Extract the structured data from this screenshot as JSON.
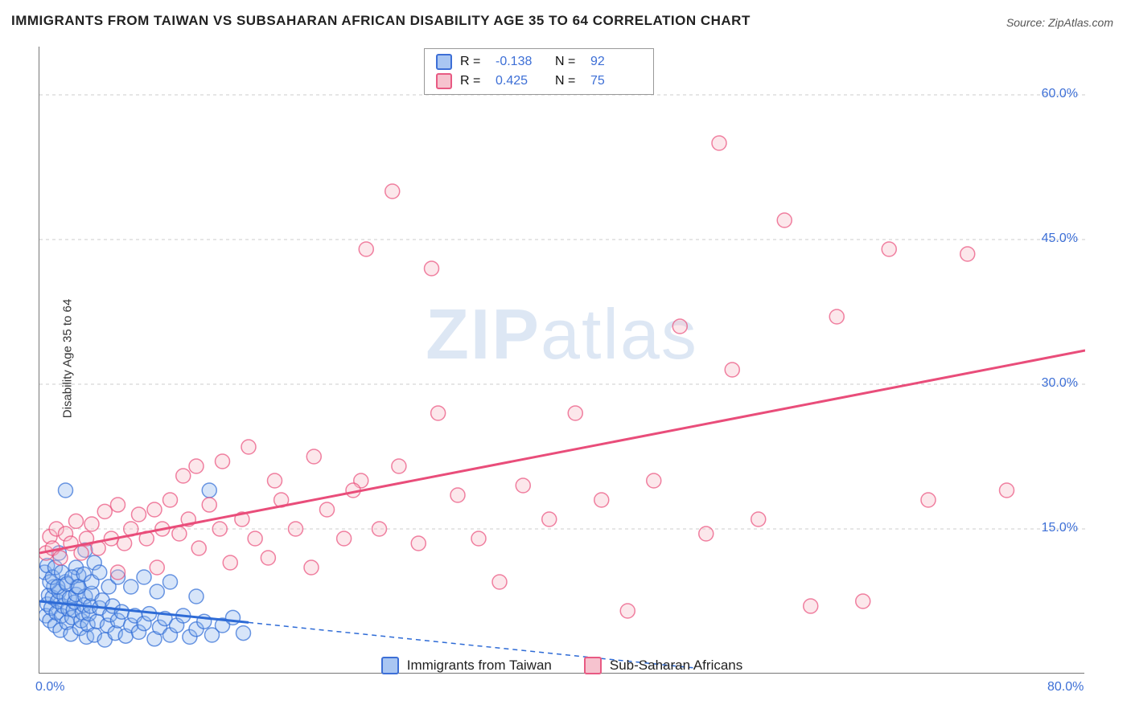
{
  "chart": {
    "type": "scatter-with-regression",
    "title": "IMMIGRANTS FROM TAIWAN VS SUBSAHARAN AFRICAN DISABILITY AGE 35 TO 64 CORRELATION CHART",
    "source_label": "Source: ZipAtlas.com",
    "watermark": {
      "prefix": "ZIP",
      "suffix": "atlas"
    },
    "ylabel": "Disability Age 35 to 64",
    "background_color": "#ffffff",
    "grid_color": "#cccccc",
    "grid_dash": "4,4",
    "axis_color": "#777777",
    "tick_font_color": "#3d6fd6",
    "tick_fontsize": 16,
    "title_fontsize": 17,
    "label_fontsize": 15,
    "watermark_fontsize": 88,
    "watermark_color": "rgba(120,160,210,0.25)",
    "xlim": [
      0.0,
      80.0
    ],
    "ylim": [
      0.0,
      65.0
    ],
    "y_ticks": [
      15.0,
      30.0,
      45.0,
      60.0
    ],
    "y_tick_labels": [
      "15.0%",
      "30.0%",
      "45.0%",
      "60.0%"
    ],
    "x_tick_left": {
      "value": 0.0,
      "label": "0.0%"
    },
    "x_tick_right": {
      "value": 80.0,
      "label": "80.0%"
    },
    "marker_radius": 9,
    "marker_fill_opacity": 0.35,
    "marker_stroke_width": 1.5,
    "regression_line_width": 3,
    "series": [
      {
        "key": "taiwan",
        "name": "Immigrants from Taiwan",
        "color_fill": "#8db4ed",
        "color_stroke": "#2e6bd6",
        "legend_swatch_bg": "#a9c6f2",
        "legend_swatch_border": "#3d6fd6",
        "stats": {
          "R": "-0.138",
          "N": "92"
        },
        "regression": {
          "x0": 0.0,
          "y0": 7.5,
          "x_solid_end": 16.0,
          "y_solid_end": 5.3,
          "x1": 50.0,
          "y1": 0.6,
          "dash_pattern": "6,5"
        },
        "points": [
          [
            0.5,
            6.0
          ],
          [
            0.6,
            7.2
          ],
          [
            0.7,
            8.1
          ],
          [
            0.8,
            5.5
          ],
          [
            0.9,
            6.8
          ],
          [
            1.0,
            7.9
          ],
          [
            1.1,
            9.0
          ],
          [
            1.2,
            5.0
          ],
          [
            1.3,
            6.3
          ],
          [
            1.4,
            7.5
          ],
          [
            1.5,
            8.5
          ],
          [
            1.6,
            4.5
          ],
          [
            1.7,
            6.0
          ],
          [
            1.8,
            7.0
          ],
          [
            1.9,
            8.0
          ],
          [
            2.0,
            9.5
          ],
          [
            2.1,
            5.3
          ],
          [
            2.2,
            6.7
          ],
          [
            2.3,
            7.8
          ],
          [
            2.4,
            4.1
          ],
          [
            2.5,
            5.8
          ],
          [
            2.6,
            6.6
          ],
          [
            2.7,
            7.4
          ],
          [
            2.8,
            8.2
          ],
          [
            2.9,
            9.0
          ],
          [
            3.0,
            10.2
          ],
          [
            3.1,
            4.7
          ],
          [
            3.2,
            5.5
          ],
          [
            3.3,
            6.3
          ],
          [
            3.4,
            7.1
          ],
          [
            3.5,
            8.0
          ],
          [
            3.6,
            3.8
          ],
          [
            3.7,
            5.1
          ],
          [
            3.8,
            6.2
          ],
          [
            3.9,
            7.0
          ],
          [
            4.0,
            8.3
          ],
          [
            4.2,
            4.0
          ],
          [
            4.4,
            5.4
          ],
          [
            4.6,
            6.8
          ],
          [
            4.8,
            7.6
          ],
          [
            5.0,
            3.5
          ],
          [
            5.2,
            5.0
          ],
          [
            5.4,
            6.1
          ],
          [
            5.6,
            7.0
          ],
          [
            5.8,
            4.2
          ],
          [
            6.0,
            5.5
          ],
          [
            6.3,
            6.4
          ],
          [
            6.6,
            3.9
          ],
          [
            7.0,
            5.0
          ],
          [
            7.3,
            6.0
          ],
          [
            7.6,
            4.3
          ],
          [
            8.0,
            5.2
          ],
          [
            8.4,
            6.2
          ],
          [
            8.8,
            3.6
          ],
          [
            9.2,
            4.8
          ],
          [
            9.6,
            5.7
          ],
          [
            10.0,
            4.0
          ],
          [
            10.5,
            5.0
          ],
          [
            11.0,
            6.0
          ],
          [
            11.5,
            3.8
          ],
          [
            12.0,
            4.6
          ],
          [
            12.6,
            5.4
          ],
          [
            13.2,
            4.0
          ],
          [
            14.0,
            5.0
          ],
          [
            14.8,
            5.8
          ],
          [
            15.6,
            4.2
          ],
          [
            1.5,
            12.5
          ],
          [
            2.8,
            11.0
          ],
          [
            3.5,
            12.8
          ],
          [
            4.2,
            11.5
          ],
          [
            2.0,
            19.0
          ],
          [
            13.0,
            19.0
          ],
          [
            0.4,
            10.5
          ],
          [
            0.6,
            11.2
          ],
          [
            0.8,
            9.5
          ],
          [
            1.0,
            10.0
          ],
          [
            1.2,
            11.0
          ],
          [
            1.4,
            9.0
          ],
          [
            1.7,
            10.5
          ],
          [
            2.1,
            9.3
          ],
          [
            2.5,
            10.0
          ],
          [
            3.0,
            9.0
          ],
          [
            3.4,
            10.3
          ],
          [
            4.0,
            9.5
          ],
          [
            4.6,
            10.5
          ],
          [
            5.3,
            9.0
          ],
          [
            6.0,
            10.0
          ],
          [
            7.0,
            9.0
          ],
          [
            8.0,
            10.0
          ],
          [
            9.0,
            8.5
          ],
          [
            10.0,
            9.5
          ],
          [
            12.0,
            8.0
          ]
        ]
      },
      {
        "key": "ssa",
        "name": "Sub-Saharan Africans",
        "color_fill": "#f5b9c7",
        "color_stroke": "#e94d7a",
        "legend_swatch_bg": "#f6c3cf",
        "legend_swatch_border": "#e85a83",
        "stats": {
          "R": "0.425",
          "N": "75"
        },
        "regression": {
          "x0": 0.0,
          "y0": 12.5,
          "x_solid_end": 80.0,
          "y_solid_end": 33.5,
          "x1": 80.0,
          "y1": 33.5,
          "dash_pattern": null
        },
        "points": [
          [
            0.5,
            12.5
          ],
          [
            0.8,
            14.2
          ],
          [
            1.0,
            13.0
          ],
          [
            1.3,
            15.0
          ],
          [
            1.6,
            12.0
          ],
          [
            2.0,
            14.5
          ],
          [
            2.4,
            13.5
          ],
          [
            2.8,
            15.8
          ],
          [
            3.2,
            12.5
          ],
          [
            3.6,
            14.0
          ],
          [
            4.0,
            15.5
          ],
          [
            4.5,
            13.0
          ],
          [
            5.0,
            16.8
          ],
          [
            5.5,
            14.0
          ],
          [
            6.0,
            17.5
          ],
          [
            6.5,
            13.5
          ],
          [
            7.0,
            15.0
          ],
          [
            7.6,
            16.5
          ],
          [
            8.2,
            14.0
          ],
          [
            8.8,
            17.0
          ],
          [
            9.4,
            15.0
          ],
          [
            10.0,
            18.0
          ],
          [
            10.7,
            14.5
          ],
          [
            11.4,
            16.0
          ],
          [
            12.2,
            13.0
          ],
          [
            13.0,
            17.5
          ],
          [
            13.8,
            15.0
          ],
          [
            14.6,
            11.5
          ],
          [
            15.5,
            16.0
          ],
          [
            16.5,
            14.0
          ],
          [
            17.5,
            12.0
          ],
          [
            18.5,
            18.0
          ],
          [
            19.6,
            15.0
          ],
          [
            20.8,
            11.0
          ],
          [
            22.0,
            17.0
          ],
          [
            23.3,
            14.0
          ],
          [
            24.6,
            20.0
          ],
          [
            26.0,
            15.0
          ],
          [
            27.5,
            21.5
          ],
          [
            29.0,
            13.5
          ],
          [
            30.5,
            27.0
          ],
          [
            32.0,
            18.5
          ],
          [
            33.6,
            14.0
          ],
          [
            35.2,
            9.5
          ],
          [
            37.0,
            19.5
          ],
          [
            39.0,
            16.0
          ],
          [
            41.0,
            27.0
          ],
          [
            43.0,
            18.0
          ],
          [
            45.0,
            6.5
          ],
          [
            47.0,
            20.0
          ],
          [
            49.0,
            36.0
          ],
          [
            51.0,
            14.5
          ],
          [
            53.0,
            31.5
          ],
          [
            55.0,
            16.0
          ],
          [
            57.0,
            47.0
          ],
          [
            59.0,
            7.0
          ],
          [
            61.0,
            37.0
          ],
          [
            63.0,
            7.5
          ],
          [
            65.0,
            44.0
          ],
          [
            68.0,
            18.0
          ],
          [
            71.0,
            43.5
          ],
          [
            74.0,
            19.0
          ],
          [
            52.0,
            55.0
          ],
          [
            27.0,
            50.0
          ],
          [
            25.0,
            44.0
          ],
          [
            30.0,
            42.0
          ],
          [
            11.0,
            20.5
          ],
          [
            12.0,
            21.5
          ],
          [
            14.0,
            22.0
          ],
          [
            16.0,
            23.5
          ],
          [
            18.0,
            20.0
          ],
          [
            21.0,
            22.5
          ],
          [
            24.0,
            19.0
          ],
          [
            9.0,
            11.0
          ],
          [
            6.0,
            10.5
          ]
        ]
      }
    ],
    "stats_box_labels": {
      "R_label": "R =",
      "N_label": "N ="
    }
  }
}
